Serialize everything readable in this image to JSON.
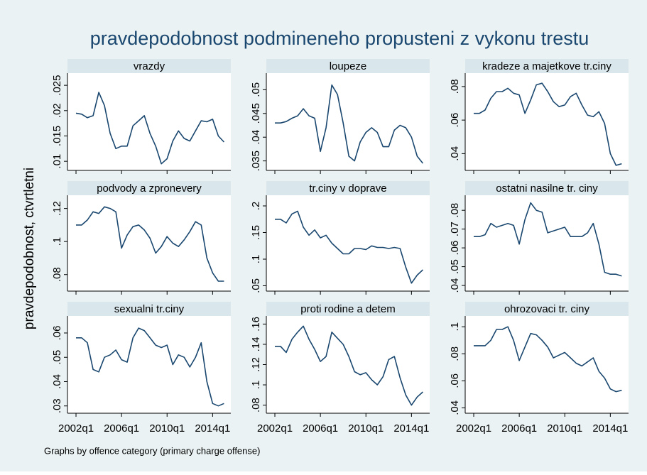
{
  "title": "pravdepodobnost podmineneho propusteni z vykonu trestu",
  "y_label": "pravdepodobnost, ctvrtletni",
  "note": "Graphs by offence category (primary charge offense)",
  "xticks": [
    "2002q1",
    "2006q1",
    "2010q1",
    "2014q1"
  ],
  "chart_data": [
    {
      "type": "line",
      "title": "vrazdy",
      "color": "#1a476f",
      "x": [
        "2002q1",
        "2002q3",
        "2003q1",
        "2003q3",
        "2004q1",
        "2004q3",
        "2005q1",
        "2005q3",
        "2006q1",
        "2006q3",
        "2007q1",
        "2007q3",
        "2008q1",
        "2008q3",
        "2009q1",
        "2009q3",
        "2010q1",
        "2010q3",
        "2011q1",
        "2011q3",
        "2012q1",
        "2012q3",
        "2013q1",
        "2013q3",
        "2014q1",
        "2014q3",
        "2015q1"
      ],
      "values": [
        0.0195,
        0.0193,
        0.0186,
        0.019,
        0.0236,
        0.021,
        0.0155,
        0.0125,
        0.013,
        0.013,
        0.017,
        0.018,
        0.019,
        0.0155,
        0.013,
        0.0095,
        0.0105,
        0.014,
        0.016,
        0.0145,
        0.014,
        0.016,
        0.018,
        0.0178,
        0.0183,
        0.015,
        0.0138
      ],
      "ylim": [
        0.0082,
        0.0274
      ],
      "yticks": [
        {
          "value": 0.01,
          "label": ".01"
        },
        {
          "value": 0.015,
          "label": ".015"
        },
        {
          "value": 0.02,
          "label": ".02"
        },
        {
          "value": 0.025,
          "label": ".025"
        }
      ]
    },
    {
      "type": "line",
      "title": "loupeze",
      "color": "#1a476f",
      "x": [
        "2002q1",
        "2002q3",
        "2003q1",
        "2003q3",
        "2004q1",
        "2004q3",
        "2005q1",
        "2005q3",
        "2006q1",
        "2006q3",
        "2007q1",
        "2007q3",
        "2008q1",
        "2008q3",
        "2009q1",
        "2009q3",
        "2010q1",
        "2010q3",
        "2011q1",
        "2011q3",
        "2012q1",
        "2012q3",
        "2013q1",
        "2013q3",
        "2014q1",
        "2014q3",
        "2015q1"
      ],
      "values": [
        0.043,
        0.043,
        0.0433,
        0.044,
        0.0445,
        0.046,
        0.0445,
        0.044,
        0.037,
        0.042,
        0.051,
        0.049,
        0.043,
        0.036,
        0.035,
        0.039,
        0.041,
        0.042,
        0.041,
        0.038,
        0.038,
        0.0415,
        0.0425,
        0.042,
        0.04,
        0.036,
        0.0345
      ],
      "ylim": [
        0.033,
        0.0535
      ],
      "yticks": [
        {
          "value": 0.035,
          "label": ".035"
        },
        {
          "value": 0.04,
          "label": ".04"
        },
        {
          "value": 0.045,
          "label": ".045"
        },
        {
          "value": 0.05,
          "label": ".05"
        }
      ]
    },
    {
      "type": "line",
      "title": "kradeze a majetkove tr.ciny",
      "color": "#1a476f",
      "x": [
        "2002q1",
        "2002q3",
        "2003q1",
        "2003q3",
        "2004q1",
        "2004q3",
        "2005q1",
        "2005q3",
        "2006q1",
        "2006q3",
        "2007q1",
        "2007q3",
        "2008q1",
        "2008q3",
        "2009q1",
        "2009q3",
        "2010q1",
        "2010q3",
        "2011q1",
        "2011q3",
        "2012q1",
        "2012q3",
        "2013q1",
        "2013q3",
        "2014q1",
        "2014q3",
        "2015q1"
      ],
      "values": [
        0.064,
        0.064,
        0.066,
        0.073,
        0.077,
        0.077,
        0.079,
        0.076,
        0.075,
        0.064,
        0.072,
        0.081,
        0.082,
        0.077,
        0.071,
        0.068,
        0.069,
        0.074,
        0.076,
        0.069,
        0.063,
        0.062,
        0.065,
        0.058,
        0.04,
        0.033,
        0.034
      ],
      "ylim": [
        0.03,
        0.088
      ],
      "yticks": [
        {
          "value": 0.04,
          "label": ".04"
        },
        {
          "value": 0.06,
          "label": ".06"
        },
        {
          "value": 0.08,
          "label": ".08"
        }
      ]
    },
    {
      "type": "line",
      "title": "podvody a zpronevery",
      "color": "#1a476f",
      "x": [
        "2002q1",
        "2002q3",
        "2003q1",
        "2003q3",
        "2004q1",
        "2004q3",
        "2005q1",
        "2005q3",
        "2006q1",
        "2006q3",
        "2007q1",
        "2007q3",
        "2008q1",
        "2008q3",
        "2009q1",
        "2009q3",
        "2010q1",
        "2010q3",
        "2011q1",
        "2011q3",
        "2012q1",
        "2012q3",
        "2013q1",
        "2013q3",
        "2014q1",
        "2014q3",
        "2015q1"
      ],
      "values": [
        0.11,
        0.11,
        0.113,
        0.118,
        0.117,
        0.121,
        0.12,
        0.118,
        0.096,
        0.104,
        0.109,
        0.11,
        0.107,
        0.102,
        0.093,
        0.097,
        0.103,
        0.099,
        0.097,
        0.101,
        0.106,
        0.112,
        0.11,
        0.09,
        0.081,
        0.076,
        0.076
      ],
      "ylim": [
        0.07,
        0.128
      ],
      "yticks": [
        {
          "value": 0.08,
          "label": ".08"
        },
        {
          "value": 0.1,
          "label": ".1"
        },
        {
          "value": 0.12,
          "label": ".12"
        }
      ]
    },
    {
      "type": "line",
      "title": "tr.ciny v doprave",
      "color": "#1a476f",
      "x": [
        "2002q1",
        "2002q3",
        "2003q1",
        "2003q3",
        "2004q1",
        "2004q3",
        "2005q1",
        "2005q3",
        "2006q1",
        "2006q3",
        "2007q1",
        "2007q3",
        "2008q1",
        "2008q3",
        "2009q1",
        "2009q3",
        "2010q1",
        "2010q3",
        "2011q1",
        "2011q3",
        "2012q1",
        "2012q3",
        "2013q1",
        "2013q3",
        "2014q1",
        "2014q3",
        "2015q1"
      ],
      "values": [
        0.175,
        0.175,
        0.168,
        0.185,
        0.19,
        0.16,
        0.145,
        0.155,
        0.14,
        0.145,
        0.13,
        0.12,
        0.11,
        0.11,
        0.12,
        0.12,
        0.118,
        0.125,
        0.122,
        0.122,
        0.12,
        0.122,
        0.12,
        0.085,
        0.055,
        0.07,
        0.08
      ],
      "ylim": [
        0.04,
        0.22
      ],
      "yticks": [
        {
          "value": 0.05,
          "label": ".05"
        },
        {
          "value": 0.1,
          "label": ".1"
        },
        {
          "value": 0.15,
          "label": ".15"
        },
        {
          "value": 0.2,
          "label": ".2"
        }
      ]
    },
    {
      "type": "line",
      "title": "ostatni nasilne tr. ciny",
      "color": "#1a476f",
      "x": [
        "2002q1",
        "2002q3",
        "2003q1",
        "2003q3",
        "2004q1",
        "2004q3",
        "2005q1",
        "2005q3",
        "2006q1",
        "2006q3",
        "2007q1",
        "2007q3",
        "2008q1",
        "2008q3",
        "2009q1",
        "2009q3",
        "2010q1",
        "2010q3",
        "2011q1",
        "2011q3",
        "2012q1",
        "2012q3",
        "2013q1",
        "2013q3",
        "2014q1",
        "2014q3",
        "2015q1"
      ],
      "values": [
        0.066,
        0.066,
        0.067,
        0.073,
        0.071,
        0.072,
        0.073,
        0.072,
        0.062,
        0.075,
        0.084,
        0.08,
        0.079,
        0.068,
        0.069,
        0.07,
        0.071,
        0.066,
        0.066,
        0.066,
        0.068,
        0.073,
        0.062,
        0.047,
        0.046,
        0.046,
        0.045
      ],
      "ylim": [
        0.037,
        0.088
      ],
      "yticks": [
        {
          "value": 0.04,
          "label": ".04"
        },
        {
          "value": 0.05,
          "label": ".05"
        },
        {
          "value": 0.06,
          "label": ".06"
        },
        {
          "value": 0.07,
          "label": ".07"
        },
        {
          "value": 0.08,
          "label": ".08"
        }
      ]
    },
    {
      "type": "line",
      "title": "sexualni tr.ciny",
      "color": "#1a476f",
      "x": [
        "2002q1",
        "2002q3",
        "2003q1",
        "2003q3",
        "2004q1",
        "2004q3",
        "2005q1",
        "2005q3",
        "2006q1",
        "2006q3",
        "2007q1",
        "2007q3",
        "2008q1",
        "2008q3",
        "2009q1",
        "2009q3",
        "2010q1",
        "2010q3",
        "2011q1",
        "2011q3",
        "2012q1",
        "2012q3",
        "2013q1",
        "2013q3",
        "2014q1",
        "2014q3",
        "2015q1"
      ],
      "values": [
        0.058,
        0.058,
        0.056,
        0.045,
        0.044,
        0.05,
        0.051,
        0.053,
        0.049,
        0.048,
        0.058,
        0.062,
        0.061,
        0.058,
        0.055,
        0.054,
        0.055,
        0.047,
        0.051,
        0.05,
        0.046,
        0.05,
        0.056,
        0.04,
        0.031,
        0.03,
        0.031
      ],
      "ylim": [
        0.027,
        0.067
      ],
      "yticks": [
        {
          "value": 0.03,
          "label": ".03"
        },
        {
          "value": 0.04,
          "label": ".04"
        },
        {
          "value": 0.05,
          "label": ".05"
        },
        {
          "value": 0.06,
          "label": ".06"
        }
      ]
    },
    {
      "type": "line",
      "title": "proti rodine a detem",
      "color": "#1a476f",
      "x": [
        "2002q1",
        "2002q3",
        "2003q1",
        "2003q3",
        "2004q1",
        "2004q3",
        "2005q1",
        "2005q3",
        "2006q1",
        "2006q3",
        "2007q1",
        "2007q3",
        "2008q1",
        "2008q3",
        "2009q1",
        "2009q3",
        "2010q1",
        "2010q3",
        "2011q1",
        "2011q3",
        "2012q1",
        "2012q3",
        "2013q1",
        "2013q3",
        "2014q1",
        "2014q3",
        "2015q1"
      ],
      "values": [
        0.138,
        0.138,
        0.132,
        0.145,
        0.152,
        0.158,
        0.145,
        0.135,
        0.123,
        0.128,
        0.152,
        0.146,
        0.14,
        0.128,
        0.113,
        0.11,
        0.112,
        0.105,
        0.1,
        0.108,
        0.125,
        0.128,
        0.107,
        0.09,
        0.08,
        0.088,
        0.093
      ],
      "ylim": [
        0.072,
        0.168
      ],
      "yticks": [
        {
          "value": 0.08,
          "label": ".08"
        },
        {
          "value": 0.1,
          "label": ".1"
        },
        {
          "value": 0.12,
          "label": ".12"
        },
        {
          "value": 0.14,
          "label": ".14"
        },
        {
          "value": 0.16,
          "label": ".16"
        }
      ]
    },
    {
      "type": "line",
      "title": "ohrozovaci tr. ciny",
      "color": "#1a476f",
      "x": [
        "2002q1",
        "2002q3",
        "2003q1",
        "2003q3",
        "2004q1",
        "2004q3",
        "2005q1",
        "2005q3",
        "2006q1",
        "2006q3",
        "2007q1",
        "2007q3",
        "2008q1",
        "2008q3",
        "2009q1",
        "2009q3",
        "2010q1",
        "2010q3",
        "2011q1",
        "2011q3",
        "2012q1",
        "2012q3",
        "2013q1",
        "2013q3",
        "2014q1",
        "2014q3",
        "2015q1"
      ],
      "values": [
        0.086,
        0.086,
        0.086,
        0.09,
        0.098,
        0.098,
        0.1,
        0.09,
        0.075,
        0.085,
        0.095,
        0.094,
        0.09,
        0.085,
        0.077,
        0.079,
        0.081,
        0.077,
        0.073,
        0.071,
        0.074,
        0.077,
        0.067,
        0.062,
        0.054,
        0.052,
        0.053
      ],
      "ylim": [
        0.036,
        0.108
      ],
      "yticks": [
        {
          "value": 0.04,
          "label": ".04"
        },
        {
          "value": 0.06,
          "label": ".06"
        },
        {
          "value": 0.08,
          "label": ".08"
        },
        {
          "value": 0.1,
          "label": ".1"
        }
      ]
    }
  ]
}
